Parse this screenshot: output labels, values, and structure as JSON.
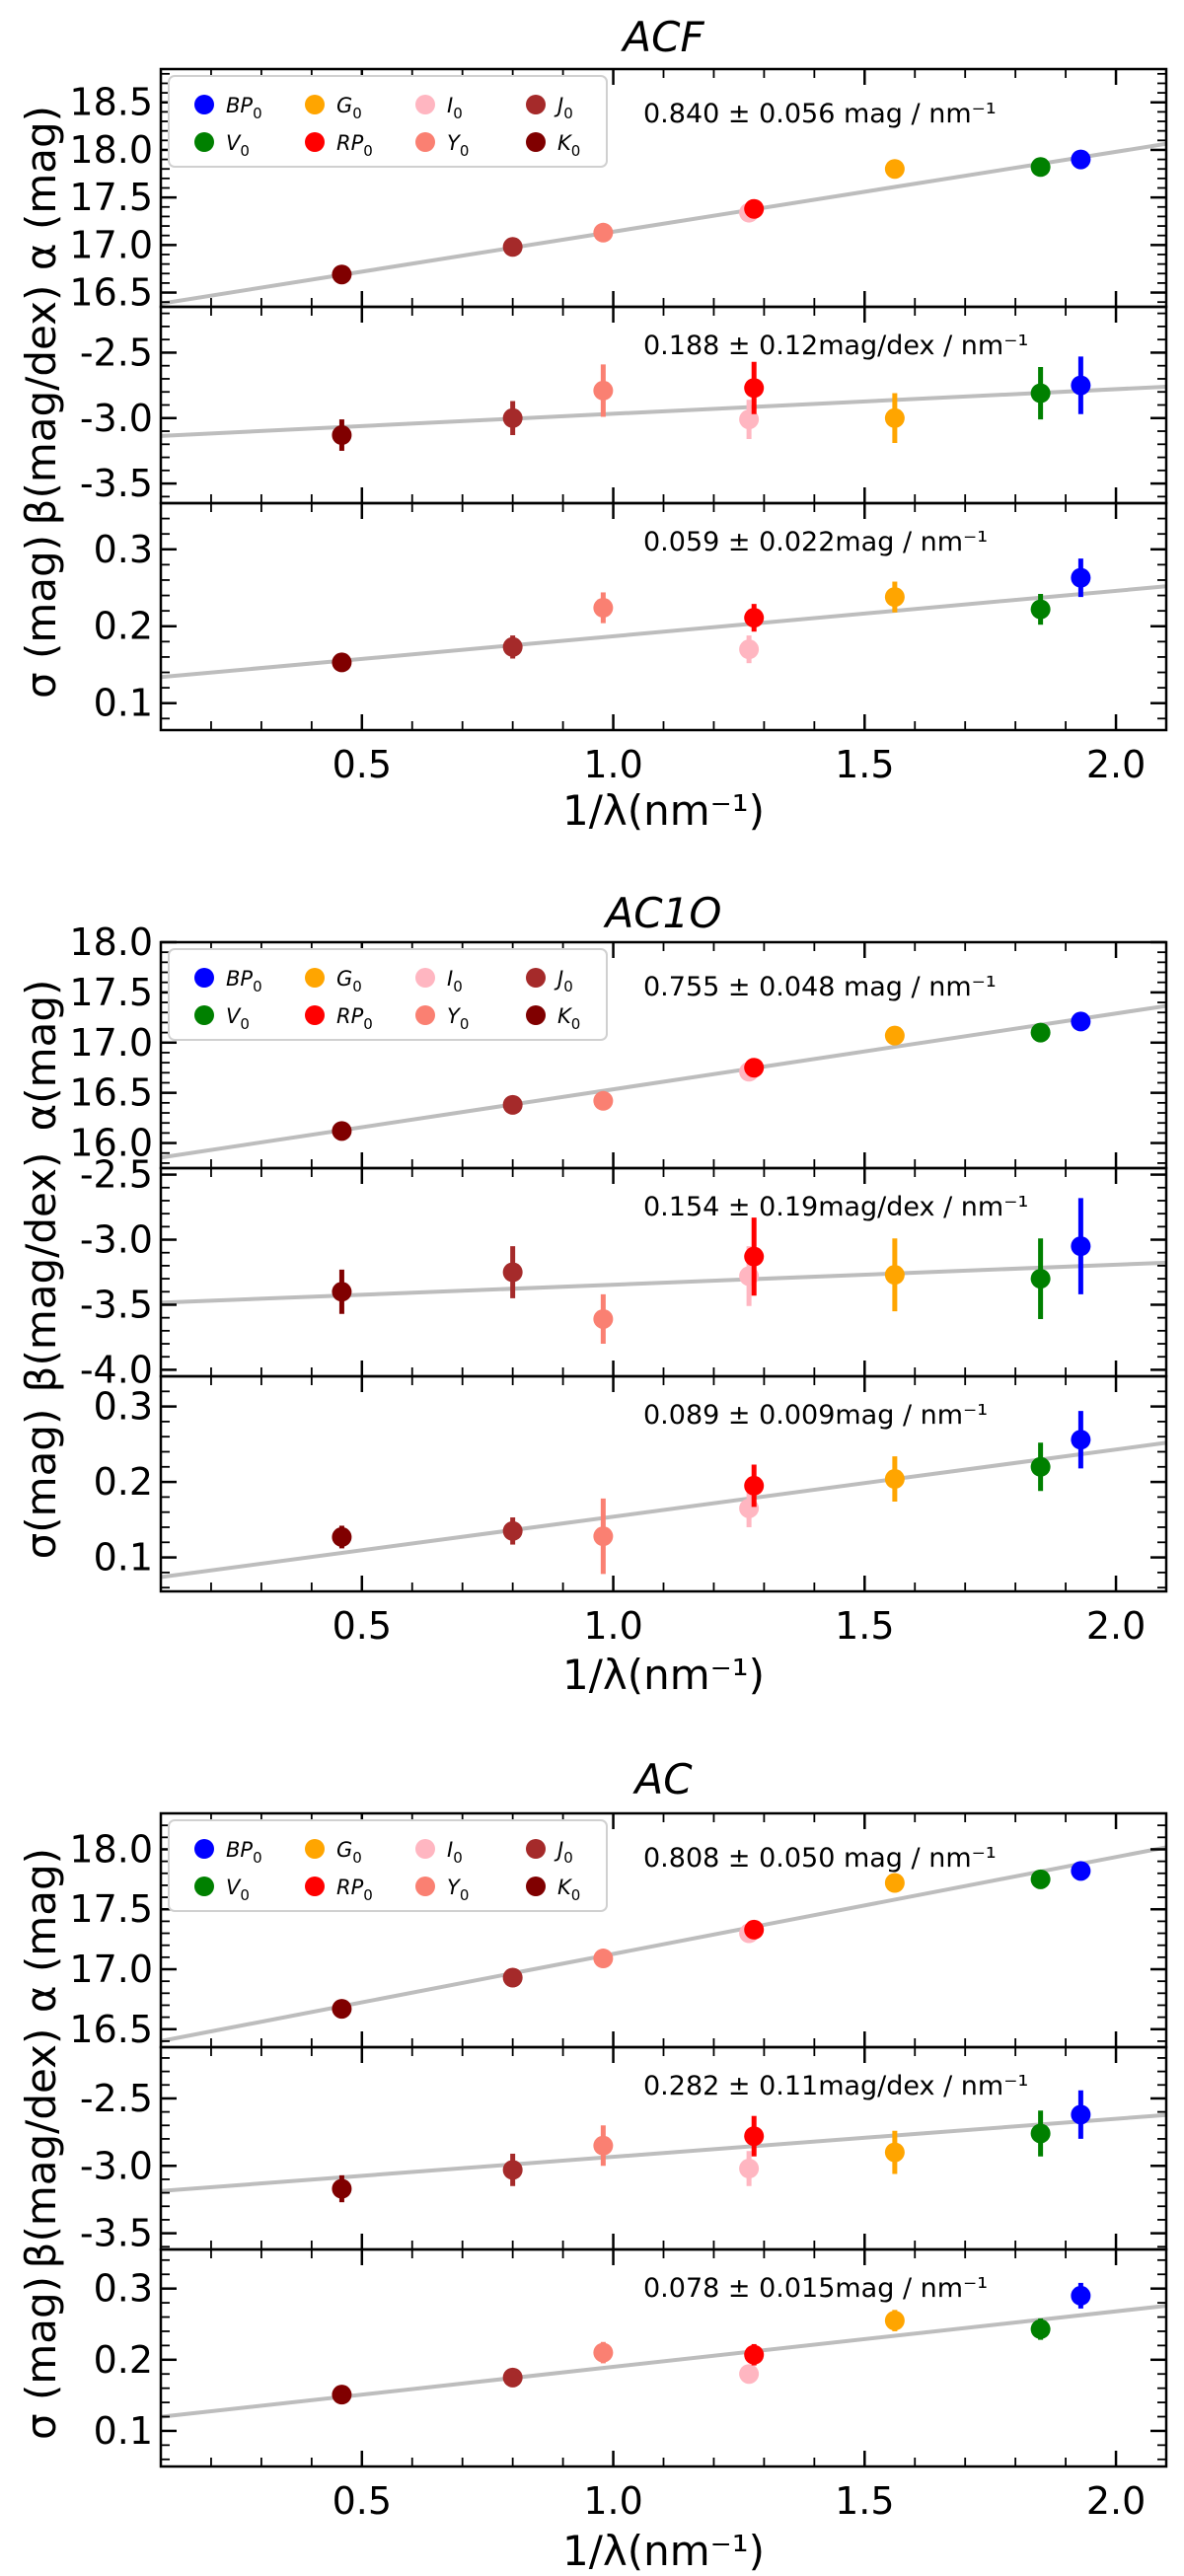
{
  "chart_data": [
    {
      "type": "scatter",
      "title": "ACF",
      "xlabel": "1/λ(nm⁻¹)",
      "xlim": [
        0.1,
        2.1
      ],
      "xticks": [
        "0.5",
        "1.0",
        "1.5",
        "2.0"
      ],
      "legend_placement": "top-left",
      "panels": [
        {
          "ylabel": "α (mag)",
          "ylim": [
            16.35,
            18.85
          ],
          "yticks": [
            "16.5",
            "17.0",
            "17.5",
            "18.0",
            "18.5"
          ],
          "fit": {
            "slope": 0.84,
            "intercept": 16.3
          },
          "annotation": "0.840 ± 0.056 mag / nm⁻¹",
          "points": [
            {
              "band": "K0",
              "x": 0.46,
              "y": 16.69,
              "err": 0.03
            },
            {
              "band": "J0",
              "x": 0.8,
              "y": 16.98,
              "err": 0.03
            },
            {
              "band": "Y0",
              "x": 0.98,
              "y": 17.13,
              "err": 0.03
            },
            {
              "band": "I0",
              "x": 1.27,
              "y": 17.34,
              "err": 0.04
            },
            {
              "band": "RP0",
              "x": 1.28,
              "y": 17.38,
              "err": 0.03
            },
            {
              "band": "G0",
              "x": 1.56,
              "y": 17.8,
              "err": 0.03
            },
            {
              "band": "V0",
              "x": 1.85,
              "y": 17.82,
              "err": 0.03
            },
            {
              "band": "BP0",
              "x": 1.93,
              "y": 17.9,
              "err": 0.03
            }
          ]
        },
        {
          "ylabel": "β(mag/dex)",
          "ylim": [
            -3.65,
            -2.15
          ],
          "yticks": [
            "-2.5",
            "-3.0",
            "-3.5"
          ],
          "fit": {
            "slope": 0.188,
            "intercept": -3.155
          },
          "annotation": "0.188 ± 0.12mag/dex / nm⁻¹",
          "points": [
            {
              "band": "K0",
              "x": 0.46,
              "y": -3.13,
              "err": 0.12
            },
            {
              "band": "J0",
              "x": 0.8,
              "y": -3.0,
              "err": 0.13
            },
            {
              "band": "Y0",
              "x": 0.98,
              "y": -2.79,
              "err": 0.2
            },
            {
              "band": "RP0",
              "x": 1.28,
              "y": -2.77,
              "err": 0.2
            },
            {
              "band": "I0",
              "x": 1.27,
              "y": -3.01,
              "err": 0.15
            },
            {
              "band": "G0",
              "x": 1.56,
              "y": -3.0,
              "err": 0.19
            },
            {
              "band": "V0",
              "x": 1.85,
              "y": -2.81,
              "err": 0.2
            },
            {
              "band": "BP0",
              "x": 1.93,
              "y": -2.75,
              "err": 0.22
            }
          ]
        },
        {
          "ylabel": "σ (mag)",
          "ylim": [
            0.065,
            0.36
          ],
          "yticks": [
            "0.1",
            "0.2",
            "0.3"
          ],
          "fit": {
            "slope": 0.059,
            "intercept": 0.128
          },
          "annotation": "0.059 ± 0.022mag / nm⁻¹",
          "points": [
            {
              "band": "K0",
              "x": 0.46,
              "y": 0.153,
              "err": 0.01
            },
            {
              "band": "J0",
              "x": 0.8,
              "y": 0.173,
              "err": 0.015
            },
            {
              "band": "Y0",
              "x": 0.98,
              "y": 0.224,
              "err": 0.02
            },
            {
              "band": "I0",
              "x": 1.27,
              "y": 0.17,
              "err": 0.018
            },
            {
              "band": "RP0",
              "x": 1.28,
              "y": 0.211,
              "err": 0.018
            },
            {
              "band": "G0",
              "x": 1.56,
              "y": 0.238,
              "err": 0.02
            },
            {
              "band": "V0",
              "x": 1.85,
              "y": 0.222,
              "err": 0.02
            },
            {
              "band": "BP0",
              "x": 1.93,
              "y": 0.263,
              "err": 0.025
            }
          ]
        }
      ]
    },
    {
      "type": "scatter",
      "title": "AC1O",
      "xlabel": "1/λ(nm⁻¹)",
      "xlim": [
        0.1,
        2.1
      ],
      "xticks": [
        "0.5",
        "1.0",
        "1.5",
        "2.0"
      ],
      "legend_placement": "top-left",
      "panels": [
        {
          "ylabel": "α(mag)",
          "ylim": [
            15.75,
            18.0
          ],
          "yticks": [
            "16.0",
            "16.5",
            "17.0",
            "17.5",
            "18.0"
          ],
          "fit": {
            "slope": 0.755,
            "intercept": 15.78
          },
          "annotation": "0.755 ± 0.048 mag / nm⁻¹",
          "points": [
            {
              "band": "K0",
              "x": 0.46,
              "y": 16.12,
              "err": 0.03
            },
            {
              "band": "J0",
              "x": 0.8,
              "y": 16.38,
              "err": 0.03
            },
            {
              "band": "Y0",
              "x": 0.98,
              "y": 16.42,
              "err": 0.03
            },
            {
              "band": "I0",
              "x": 1.27,
              "y": 16.71,
              "err": 0.04
            },
            {
              "band": "RP0",
              "x": 1.28,
              "y": 16.75,
              "err": 0.03
            },
            {
              "band": "G0",
              "x": 1.56,
              "y": 17.07,
              "err": 0.03
            },
            {
              "band": "V0",
              "x": 1.85,
              "y": 17.1,
              "err": 0.03
            },
            {
              "band": "BP0",
              "x": 1.93,
              "y": 17.21,
              "err": 0.03
            }
          ]
        },
        {
          "ylabel": "β(mag/dex)",
          "ylim": [
            -4.05,
            -2.45
          ],
          "yticks": [
            "-2.5",
            "-3.0",
            "-3.5",
            "-4.0"
          ],
          "fit": {
            "slope": 0.154,
            "intercept": -3.5
          },
          "annotation": "0.154 ± 0.19mag/dex / nm⁻¹",
          "points": [
            {
              "band": "K0",
              "x": 0.46,
              "y": -3.4,
              "err": 0.17
            },
            {
              "band": "J0",
              "x": 0.8,
              "y": -3.25,
              "err": 0.2
            },
            {
              "band": "Y0",
              "x": 0.98,
              "y": -3.61,
              "err": 0.19
            },
            {
              "band": "I0",
              "x": 1.27,
              "y": -3.28,
              "err": 0.23
            },
            {
              "band": "RP0",
              "x": 1.28,
              "y": -3.13,
              "err": 0.3
            },
            {
              "band": "G0",
              "x": 1.56,
              "y": -3.27,
              "err": 0.28
            },
            {
              "band": "V0",
              "x": 1.85,
              "y": -3.3,
              "err": 0.31
            },
            {
              "band": "BP0",
              "x": 1.93,
              "y": -3.05,
              "err": 0.37
            }
          ]
        },
        {
          "ylabel": "σ(mag)",
          "ylim": [
            0.055,
            0.34
          ],
          "yticks": [
            "0.1",
            "0.2",
            "0.3"
          ],
          "fit": {
            "slope": 0.089,
            "intercept": 0.065
          },
          "annotation": "0.089 ± 0.009mag / nm⁻¹",
          "points": [
            {
              "band": "K0",
              "x": 0.46,
              "y": 0.127,
              "err": 0.015
            },
            {
              "band": "J0",
              "x": 0.8,
              "y": 0.135,
              "err": 0.018
            },
            {
              "band": "Y0",
              "x": 0.98,
              "y": 0.128,
              "err": 0.05
            },
            {
              "band": "I0",
              "x": 1.27,
              "y": 0.165,
              "err": 0.025
            },
            {
              "band": "RP0",
              "x": 1.28,
              "y": 0.195,
              "err": 0.028
            },
            {
              "band": "G0",
              "x": 1.56,
              "y": 0.204,
              "err": 0.03
            },
            {
              "band": "V0",
              "x": 1.85,
              "y": 0.22,
              "err": 0.032
            },
            {
              "band": "BP0",
              "x": 1.93,
              "y": 0.256,
              "err": 0.038
            }
          ]
        }
      ]
    },
    {
      "type": "scatter",
      "title": "AC",
      "xlabel": "1/λ(nm⁻¹)",
      "xlim": [
        0.1,
        2.1
      ],
      "xticks": [
        "0.5",
        "1.0",
        "1.5",
        "2.0"
      ],
      "legend_placement": "top-left",
      "panels": [
        {
          "ylabel": "α (mag)",
          "ylim": [
            16.35,
            18.3
          ],
          "yticks": [
            "16.5",
            "17.0",
            "17.5",
            "18.0"
          ],
          "fit": {
            "slope": 0.808,
            "intercept": 16.32
          },
          "annotation": "0.808 ± 0.050 mag / nm⁻¹",
          "points": [
            {
              "band": "K0",
              "x": 0.46,
              "y": 16.67,
              "err": 0.03
            },
            {
              "band": "J0",
              "x": 0.8,
              "y": 16.93,
              "err": 0.03
            },
            {
              "band": "Y0",
              "x": 0.98,
              "y": 17.09,
              "err": 0.03
            },
            {
              "band": "I0",
              "x": 1.27,
              "y": 17.3,
              "err": 0.04
            },
            {
              "band": "RP0",
              "x": 1.28,
              "y": 17.33,
              "err": 0.03
            },
            {
              "band": "G0",
              "x": 1.56,
              "y": 17.72,
              "err": 0.03
            },
            {
              "band": "V0",
              "x": 1.85,
              "y": 17.75,
              "err": 0.03
            },
            {
              "band": "BP0",
              "x": 1.93,
              "y": 17.82,
              "err": 0.03
            }
          ]
        },
        {
          "ylabel": "β(mag/dex)",
          "ylim": [
            -3.62,
            -2.12
          ],
          "yticks": [
            "-2.5",
            "-3.0",
            "-3.5"
          ],
          "fit": {
            "slope": 0.282,
            "intercept": -3.215
          },
          "annotation": "0.282 ± 0.11mag/dex / nm⁻¹",
          "points": [
            {
              "band": "K0",
              "x": 0.46,
              "y": -3.17,
              "err": 0.1
            },
            {
              "band": "J0",
              "x": 0.8,
              "y": -3.03,
              "err": 0.12
            },
            {
              "band": "Y0",
              "x": 0.98,
              "y": -2.85,
              "err": 0.15
            },
            {
              "band": "I0",
              "x": 1.27,
              "y": -3.02,
              "err": 0.13
            },
            {
              "band": "RP0",
              "x": 1.28,
              "y": -2.78,
              "err": 0.15
            },
            {
              "band": "G0",
              "x": 1.56,
              "y": -2.9,
              "err": 0.16
            },
            {
              "band": "V0",
              "x": 1.85,
              "y": -2.76,
              "err": 0.17
            },
            {
              "band": "BP0",
              "x": 1.93,
              "y": -2.62,
              "err": 0.18
            }
          ]
        },
        {
          "ylabel": "σ (mag)",
          "ylim": [
            0.05,
            0.355
          ],
          "yticks": [
            "0.1",
            "0.2",
            "0.3"
          ],
          "fit": {
            "slope": 0.078,
            "intercept": 0.112
          },
          "annotation": "0.078 ± 0.015mag / nm⁻¹",
          "points": [
            {
              "band": "K0",
              "x": 0.46,
              "y": 0.151,
              "err": 0.008
            },
            {
              "band": "J0",
              "x": 0.8,
              "y": 0.175,
              "err": 0.01
            },
            {
              "band": "Y0",
              "x": 0.98,
              "y": 0.21,
              "err": 0.015
            },
            {
              "band": "I0",
              "x": 1.27,
              "y": 0.18,
              "err": 0.012
            },
            {
              "band": "RP0",
              "x": 1.28,
              "y": 0.207,
              "err": 0.015
            },
            {
              "band": "G0",
              "x": 1.56,
              "y": 0.255,
              "err": 0.015
            },
            {
              "band": "V0",
              "x": 1.85,
              "y": 0.243,
              "err": 0.015
            },
            {
              "band": "BP0",
              "x": 1.93,
              "y": 0.29,
              "err": 0.018
            }
          ]
        }
      ]
    }
  ],
  "legend": {
    "items": [
      {
        "band": "BP0",
        "base": "BP",
        "color": "#0000ff"
      },
      {
        "band": "G0",
        "base": "G",
        "color": "#ffa500"
      },
      {
        "band": "I0",
        "base": "I",
        "color": "#ffb6c1"
      },
      {
        "band": "J0",
        "base": "J",
        "color": "#a52a2a"
      },
      {
        "band": "V0",
        "base": "V",
        "color": "#008000"
      },
      {
        "band": "RP0",
        "base": "RP",
        "color": "#ff0000"
      },
      {
        "band": "Y0",
        "base": "Y",
        "color": "#fa8072"
      },
      {
        "band": "K0",
        "base": "K",
        "color": "#800000"
      }
    ],
    "subscript": "0"
  },
  "colors": {
    "fit_line": "#bdbdbd",
    "axis": "#000000"
  }
}
